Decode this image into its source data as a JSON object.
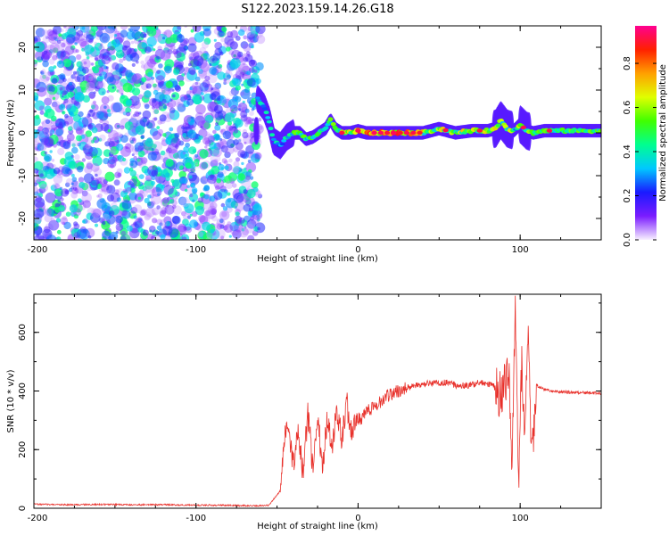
{
  "title": "S122.2023.159.14.26.G18",
  "chart_data": [
    {
      "type": "heatmap",
      "xlabel": "Height of straight line (km)",
      "ylabel": "Frequency (Hz)",
      "xlim": [
        -200,
        150
      ],
      "ylim": [
        -25,
        25
      ],
      "x_ticks": [
        -200,
        -100,
        0,
        100
      ],
      "y_ticks": [
        -20,
        -10,
        0,
        10,
        20
      ],
      "noise_region_x": [
        -200,
        -60
      ],
      "signal_ridge": {
        "x": [
          -62,
          -58,
          -55,
          -52,
          -48,
          -44,
          -40,
          -36,
          -32,
          -28,
          -24,
          -20,
          -17,
          -14,
          -10,
          -5,
          0,
          5,
          10,
          20,
          30,
          40,
          50,
          60,
          70,
          80,
          85,
          88,
          92,
          96,
          100,
          104,
          108,
          115,
          125,
          140,
          150
        ],
        "y": [
          8,
          6,
          3,
          -2,
          -3,
          -1,
          0,
          0,
          -1.5,
          -1,
          0,
          1,
          3,
          1,
          0,
          0,
          0.5,
          0,
          0,
          0,
          0,
          0,
          1,
          0,
          0.5,
          0.5,
          1,
          3,
          1,
          0.5,
          2,
          0.5,
          0,
          0.5,
          0.5,
          0.5,
          0.5
        ]
      },
      "colorbar": {
        "label": "Normalized spectral amplitude",
        "range": [
          0,
          0.97
        ],
        "ticks": [
          "0.0",
          "0.2",
          "0.4",
          "0.6",
          "0.8"
        ],
        "tick_values": [
          0,
          0.2,
          0.4,
          0.6,
          0.8
        ],
        "colors": [
          "#f8f0ff",
          "#7a1cff",
          "#1a1aff",
          "#00c8ff",
          "#00ff90",
          "#40ff00",
          "#e0ff00",
          "#ffa000",
          "#ff2000",
          "#ff0090"
        ]
      }
    },
    {
      "type": "line",
      "xlabel": "Height of straight line (km)",
      "ylabel": "SNR (10 * v/v)",
      "xlim": [
        -200,
        150
      ],
      "ylim": [
        0,
        730
      ],
      "x_ticks": [
        -200,
        -100,
        0,
        100
      ],
      "y_ticks": [
        0,
        200,
        400,
        600
      ],
      "color": "#e8302a",
      "series": [
        {
          "x": [
            -200,
            -180,
            -160,
            -140,
            -120,
            -100,
            -80,
            -65,
            -55,
            -48,
            -44,
            -40,
            -37,
            -34,
            -31,
            -28,
            -25,
            -22,
            -19,
            -16,
            -13,
            -10,
            -7,
            -4,
            -1,
            2,
            5,
            8,
            12,
            16,
            20,
            25,
            30,
            35,
            40,
            45,
            50,
            55,
            60,
            65,
            70,
            75,
            80,
            84,
            87,
            90,
            93,
            95,
            97,
            99,
            101,
            103,
            105,
            107,
            110,
            115,
            120,
            130,
            140,
            150
          ],
          "y": [
            14,
            12,
            13,
            12,
            12,
            11,
            10,
            8,
            10,
            60,
            300,
            150,
            280,
            120,
            320,
            150,
            330,
            140,
            300,
            210,
            340,
            230,
            360,
            250,
            310,
            300,
            325,
            340,
            355,
            375,
            390,
            400,
            410,
            418,
            422,
            428,
            425,
            432,
            420,
            418,
            420,
            430,
            425,
            415,
            390,
            410,
            480,
            130,
            700,
            60,
            520,
            220,
            650,
            160,
            420,
            405,
            398,
            396,
            394,
            392
          ]
        }
      ]
    }
  ]
}
